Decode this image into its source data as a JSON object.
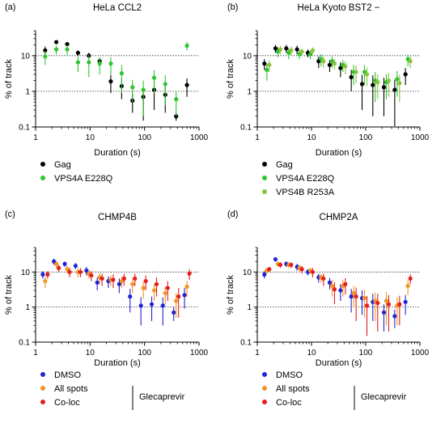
{
  "figure": {
    "panel_tags": [
      "(a)",
      "(b)",
      "(c)",
      "(d)"
    ]
  },
  "chart_data": [
    {
      "type": "scatter",
      "tag": "(a)",
      "title": "HeLa CCL2",
      "xlabel": "Duration (s)",
      "ylabel": "% of track",
      "xscale": "log",
      "yscale": "log",
      "xlim": [
        1,
        1000
      ],
      "ylim": [
        0.1,
        50
      ],
      "xticks": [
        "1",
        "10",
        "100",
        "1000"
      ],
      "yticks": [
        "0.1",
        "1",
        "10"
      ],
      "reference_lines": [
        1,
        10
      ],
      "x": [
        1.5,
        2.4,
        3.8,
        6,
        9.5,
        15,
        24,
        38,
        60,
        95,
        150,
        240,
        380,
        600
      ],
      "series": [
        {
          "name": "Gag",
          "color": "#000000",
          "values": [
            14,
            24,
            21,
            12,
            10,
            7,
            1.9,
            1.4,
            0.55,
            0.7,
            1.1,
            0.8,
            0.2,
            1.5
          ],
          "err": [
            4,
            3,
            3,
            2,
            2,
            1.5,
            1,
            0.8,
            0.3,
            0.55,
            0.8,
            0.55,
            0.05,
            0.8
          ]
        },
        {
          "name": "VPS4A E228Q",
          "color": "#2ec52e",
          "values": [
            9.5,
            15,
            15,
            6.5,
            6.5,
            6,
            6,
            3.2,
            1.3,
            1.1,
            2.4,
            1.6,
            0.6,
            19
          ],
          "err": [
            4,
            4,
            5,
            3,
            4,
            3,
            3,
            2.3,
            0.8,
            0.9,
            1.5,
            1.2,
            0.4,
            5
          ]
        }
      ]
    },
    {
      "type": "scatter",
      "tag": "(b)",
      "title": "HeLa Kyoto BST2 −",
      "xlabel": "Duration (s)",
      "ylabel": "% of track",
      "xscale": "log",
      "yscale": "log",
      "xlim": [
        1,
        1000
      ],
      "ylim": [
        0.1,
        50
      ],
      "xticks": [
        "1",
        "10",
        "100",
        "1000"
      ],
      "yticks": [
        "0.1",
        "1",
        "10"
      ],
      "reference_lines": [
        1,
        10
      ],
      "x": [
        1.5,
        2.4,
        3.8,
        6,
        9.5,
        15,
        24,
        38,
        60,
        95,
        150,
        240,
        380,
        600
      ],
      "series": [
        {
          "name": "Gag",
          "color": "#000000",
          "values": [
            6,
            16,
            16,
            15,
            12,
            7,
            5.5,
            4.5,
            2.5,
            1.6,
            1.5,
            1.3,
            1.1,
            3
          ],
          "err": [
            2,
            4,
            4,
            4,
            3,
            2.5,
            2,
            2,
            1.5,
            1.3,
            1.3,
            1.1,
            1.0,
            1.5
          ]
        },
        {
          "name": "VPS4A E228Q",
          "color": "#2ec52e",
          "values": [
            4,
            13,
            12,
            11,
            11,
            8,
            7,
            5.5,
            3.5,
            3.5,
            2,
            1.8,
            2.2,
            8
          ],
          "err": [
            2,
            4,
            4,
            3,
            3,
            3,
            2.5,
            2,
            2,
            2,
            1.5,
            1.2,
            1.5,
            3
          ]
        },
        {
          "name": "VPS4B R253A",
          "color": "#8cc33e",
          "values": [
            5.5,
            15,
            14,
            13,
            14,
            7,
            6,
            5,
            3.5,
            3,
            1.8,
            2,
            1.7,
            7
          ],
          "err": [
            2,
            4,
            4,
            3,
            3,
            2.5,
            2,
            2,
            1.8,
            1.6,
            1.2,
            1.3,
            1.2,
            2.5
          ]
        }
      ]
    },
    {
      "type": "scatter",
      "tag": "(c)",
      "title": "CHMP4B",
      "xlabel": "Duration (s)",
      "ylabel": "% of track",
      "xscale": "log",
      "yscale": "log",
      "xlim": [
        1,
        1000
      ],
      "ylim": [
        0.1,
        50
      ],
      "xticks": [
        "1",
        "10",
        "100",
        "1000"
      ],
      "yticks": [
        "0.1",
        "1",
        "10"
      ],
      "reference_lines": [
        1,
        10
      ],
      "x": [
        1.5,
        2.4,
        3.8,
        6,
        9.5,
        15,
        24,
        38,
        60,
        95,
        150,
        240,
        380,
        600
      ],
      "series": [
        {
          "name": "DMSO",
          "color": "#2323d8",
          "values": [
            8.5,
            20,
            17,
            15,
            11,
            5,
            5.5,
            4.5,
            2,
            1.1,
            1.2,
            1.1,
            0.7,
            2.2
          ],
          "err": [
            2,
            4,
            3,
            3,
            3,
            2,
            2,
            2,
            1.3,
            0.8,
            0.8,
            0.8,
            0.3,
            1.3
          ]
        },
        {
          "name": "All spots",
          "color": "#f59324",
          "values": [
            5.5,
            17,
            12,
            10,
            9,
            7,
            6,
            5.5,
            4.5,
            3.5,
            3,
            2.5,
            1.5,
            3.8
          ],
          "err": [
            2,
            4,
            3,
            3,
            2.5,
            2.5,
            2,
            2,
            2,
            1.8,
            1.5,
            1.3,
            1.0,
            1.8
          ]
        },
        {
          "name": "Co-loc",
          "color": "#e31e1e",
          "values": [
            8.5,
            13,
            10,
            10,
            8,
            6.5,
            6,
            6.5,
            6.5,
            5.5,
            4.5,
            3.5,
            2,
            9
          ],
          "err": [
            2,
            3,
            3,
            3,
            2.5,
            2.5,
            2.5,
            2.5,
            2.5,
            2.5,
            2.5,
            2,
            1.5,
            3
          ]
        }
      ]
    },
    {
      "type": "scatter",
      "tag": "(d)",
      "title": "CHMP2A",
      "xlabel": "Duration (s)",
      "ylabel": "% of track",
      "xscale": "log",
      "yscale": "log",
      "xlim": [
        1,
        1000
      ],
      "ylim": [
        0.1,
        50
      ],
      "xticks": [
        "1",
        "10",
        "100",
        "1000"
      ],
      "yticks": [
        "0.1",
        "1",
        "10"
      ],
      "reference_lines": [
        1,
        10
      ],
      "x": [
        1.5,
        2.4,
        3.8,
        6,
        9.5,
        15,
        24,
        38,
        60,
        95,
        150,
        240,
        380,
        600
      ],
      "series": [
        {
          "name": "DMSO",
          "color": "#2323d8",
          "values": [
            8.5,
            23,
            17,
            14,
            10,
            7,
            5,
            3,
            2,
            1.8,
            1.4,
            0.7,
            0.55,
            1.4
          ],
          "err": [
            2,
            3,
            3,
            3,
            2,
            2,
            1.8,
            1.5,
            1.3,
            1.2,
            1.0,
            0.5,
            0.3,
            0.8
          ]
        },
        {
          "name": "All spots",
          "color": "#f59324",
          "values": [
            11,
            17,
            16,
            13,
            11,
            7,
            4,
            4,
            2.5,
            1.8,
            1.5,
            1.5,
            1.1,
            4
          ],
          "err": [
            2,
            3,
            3,
            3,
            2,
            2,
            2,
            2,
            1.5,
            1.3,
            1.1,
            1.2,
            0.8,
            1.8
          ]
        },
        {
          "name": "Co-loc",
          "color": "#e31e1e",
          "values": [
            12,
            16,
            16,
            12,
            10,
            6.5,
            3.2,
            4.5,
            2,
            1.1,
            1.3,
            1.2,
            1.2,
            6.5
          ],
          "err": [
            2,
            3,
            3,
            3,
            3,
            2.5,
            2,
            2.2,
            1.6,
            0.95,
            1.1,
            1.0,
            0.9,
            2
          ]
        }
      ]
    }
  ],
  "treatment_bracket_label": "Glecaprevir"
}
